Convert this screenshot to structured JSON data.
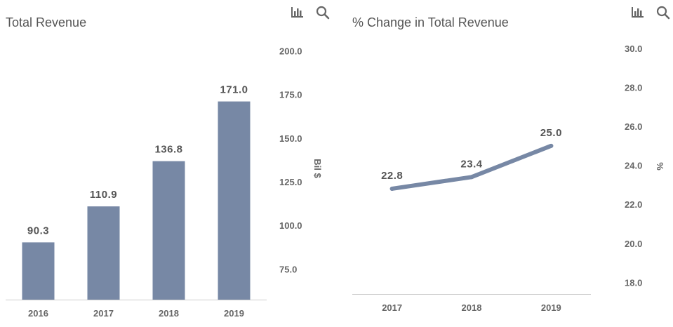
{
  "colors": {
    "bar": "#7788a5",
    "line": "#7788a5",
    "axis": "#cccccc",
    "text": "#555555",
    "icon": "#666666"
  },
  "icons": {
    "chart": "bar-chart-icon",
    "search": "search-icon"
  },
  "chart_data": [
    {
      "type": "bar",
      "title": "Total Revenue",
      "categories": [
        "2016",
        "2017",
        "2018",
        "2019"
      ],
      "values": [
        90.3,
        110.9,
        136.8,
        171.0
      ],
      "data_labels": [
        "90.3",
        "110.9",
        "136.8",
        "171.0"
      ],
      "ylabel": "Bil $",
      "ylim": [
        57.5,
        207
      ],
      "yticks": [
        75.0,
        100.0,
        125.0,
        150.0,
        175.0,
        200.0
      ],
      "ytick_labels": [
        "75.0",
        "100.0",
        "125.0",
        "150.0",
        "175.0",
        "200.0"
      ],
      "y_axis_side": "right",
      "grid": false
    },
    {
      "type": "line",
      "title": "% Change in Total Revenue",
      "categories": [
        "2017",
        "2018",
        "2019"
      ],
      "values": [
        22.8,
        23.4,
        25.0
      ],
      "data_labels": [
        "22.8",
        "23.4",
        "25.0"
      ],
      "ylabel": "%",
      "ylim": [
        17.4,
        30.5
      ],
      "yticks": [
        18.0,
        20.0,
        22.0,
        24.0,
        26.0,
        28.0,
        30.0
      ],
      "ytick_labels": [
        "18.0",
        "20.0",
        "22.0",
        "24.0",
        "26.0",
        "28.0",
        "30.0"
      ],
      "y_axis_side": "right",
      "grid": false
    }
  ]
}
